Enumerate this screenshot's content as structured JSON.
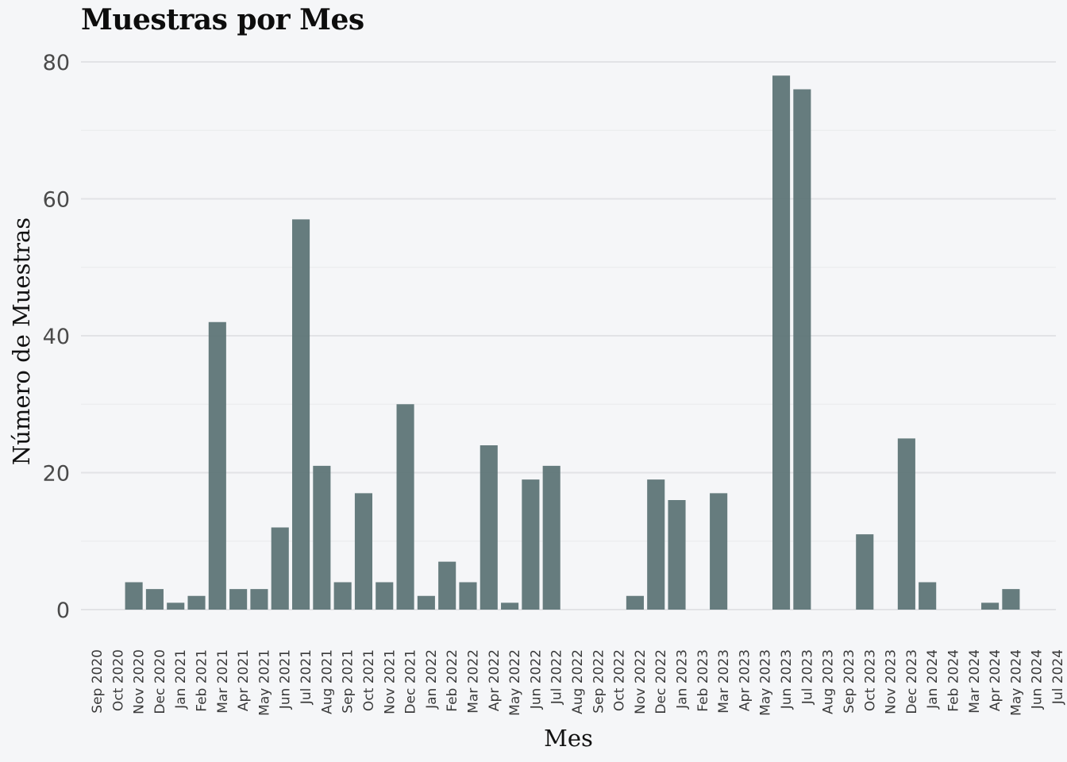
{
  "chart_data": {
    "type": "bar",
    "title": "Muestras por Mes",
    "xlabel": "Mes",
    "ylabel": "Número de Muestras",
    "ylim": [
      0,
      84
    ],
    "yticks": [
      0,
      20,
      40,
      60,
      80
    ],
    "grid": true,
    "bar_color": "#5e7577",
    "categories": [
      "Sep 2020",
      "Oct 2020",
      "Nov 2020",
      "Dec 2020",
      "Jan 2021",
      "Feb 2021",
      "Mar 2021",
      "Apr 2021",
      "May 2021",
      "Jun 2021",
      "Jul 2021",
      "Aug 2021",
      "Sep 2021",
      "Oct 2021",
      "Nov 2021",
      "Dec 2021",
      "Jan 2022",
      "Feb 2022",
      "Mar 2022",
      "Apr 2022",
      "May 2022",
      "Jun 2022",
      "Jul 2022",
      "Aug 2022",
      "Sep 2022",
      "Oct 2022",
      "Nov 2022",
      "Dec 2022",
      "Jan 2023",
      "Feb 2023",
      "Mar 2023",
      "Apr 2023",
      "May 2023",
      "Jun 2023",
      "Jul 2023",
      "Aug 2023",
      "Sep 2023",
      "Oct 2023",
      "Nov 2023",
      "Dec 2023",
      "Jan 2024",
      "Feb 2024",
      "Mar 2024",
      "Apr 2024",
      "May 2024",
      "Jun 2024",
      "Jul 2024"
    ],
    "values": [
      0,
      0,
      4,
      3,
      1,
      2,
      42,
      3,
      3,
      12,
      57,
      21,
      4,
      17,
      4,
      30,
      2,
      7,
      4,
      24,
      1,
      19,
      21,
      0,
      0,
      0,
      2,
      19,
      16,
      0,
      17,
      0,
      0,
      78,
      76,
      0,
      0,
      11,
      0,
      25,
      4,
      0,
      0,
      1,
      3,
      0,
      0
    ]
  }
}
